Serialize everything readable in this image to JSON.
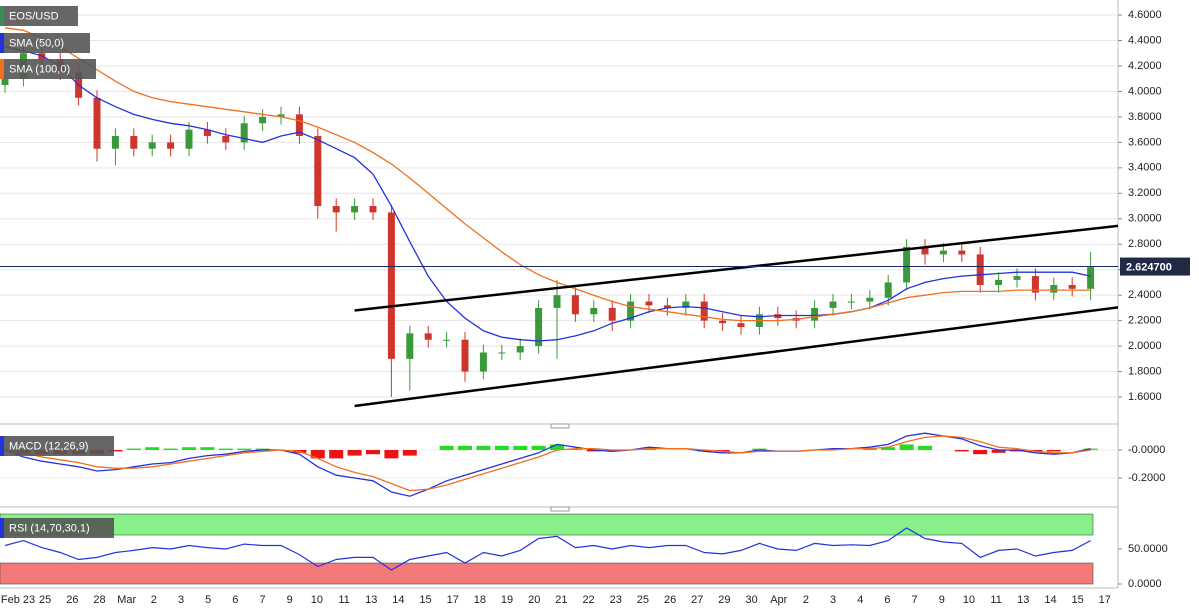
{
  "chart_data": [
    {
      "type": "candlestick",
      "title": "EOS/USD",
      "x_labels": [
        "Feb 23",
        "25",
        "26",
        "28",
        "Mar",
        "2",
        "3",
        "5",
        "6",
        "7",
        "9",
        "10",
        "11",
        "13",
        "14",
        "15",
        "17",
        "18",
        "19",
        "20",
        "21",
        "22",
        "23",
        "25",
        "26",
        "27",
        "29",
        "30",
        "Apr",
        "2",
        "3",
        "4",
        "6",
        "7",
        "9",
        "10",
        "11",
        "13",
        "14",
        "15",
        "17"
      ],
      "candles": {
        "open": [
          4.05,
          4.1,
          4.3,
          4.25,
          4.15,
          3.95,
          3.55,
          3.65,
          3.55,
          3.6,
          3.55,
          3.7,
          3.65,
          3.6,
          3.75,
          3.8,
          3.82,
          3.65,
          3.1,
          3.05,
          3.1,
          3.05,
          1.9,
          2.1,
          2.05,
          2.05,
          1.8,
          1.95,
          1.95,
          2.0,
          2.3,
          2.4,
          2.25,
          2.3,
          2.2,
          2.35,
          2.32,
          2.3,
          2.35,
          2.2,
          2.18,
          2.15,
          2.25,
          2.22,
          2.2,
          2.3,
          2.35,
          2.35,
          2.38,
          2.5,
          2.78,
          2.72,
          2.75,
          2.72,
          2.48,
          2.52,
          2.55,
          2.42,
          2.48,
          2.45
        ],
        "high": [
          4.16,
          4.36,
          4.36,
          4.31,
          4.21,
          4.01,
          3.71,
          3.71,
          3.66,
          3.66,
          3.76,
          3.76,
          3.71,
          3.81,
          3.86,
          3.88,
          3.88,
          3.71,
          3.16,
          3.16,
          3.16,
          3.11,
          2.16,
          2.16,
          2.11,
          2.11,
          2.01,
          2.01,
          2.06,
          2.36,
          2.52,
          2.46,
          2.36,
          2.36,
          2.41,
          2.41,
          2.38,
          2.41,
          2.41,
          2.26,
          2.24,
          2.31,
          2.31,
          2.28,
          2.36,
          2.41,
          2.41,
          2.44,
          2.56,
          2.84,
          2.84,
          2.81,
          2.81,
          2.78,
          2.58,
          2.61,
          2.61,
          2.54,
          2.54,
          2.74
        ],
        "low": [
          3.99,
          4.04,
          4.19,
          4.09,
          3.89,
          3.45,
          3.42,
          3.49,
          3.49,
          3.49,
          3.49,
          3.59,
          3.54,
          3.54,
          3.69,
          3.74,
          3.59,
          3.0,
          2.9,
          2.99,
          2.99,
          1.6,
          1.65,
          1.99,
          1.99,
          1.72,
          1.74,
          1.89,
          1.89,
          1.94,
          1.9,
          2.19,
          2.19,
          2.12,
          2.14,
          2.26,
          2.24,
          2.24,
          2.14,
          2.12,
          2.09,
          2.09,
          2.16,
          2.14,
          2.14,
          2.24,
          2.29,
          2.29,
          2.32,
          2.44,
          2.64,
          2.66,
          2.66,
          2.42,
          2.42,
          2.46,
          2.36,
          2.36,
          2.39,
          2.36
        ],
        "close": [
          4.1,
          4.3,
          4.25,
          4.15,
          3.95,
          3.55,
          3.65,
          3.55,
          3.6,
          3.55,
          3.7,
          3.65,
          3.6,
          3.75,
          3.8,
          3.82,
          3.65,
          3.1,
          3.05,
          3.1,
          3.05,
          1.9,
          2.1,
          2.05,
          2.05,
          1.8,
          1.95,
          1.95,
          2.0,
          2.3,
          2.4,
          2.25,
          2.3,
          2.2,
          2.35,
          2.32,
          2.3,
          2.35,
          2.2,
          2.18,
          2.15,
          2.25,
          2.22,
          2.2,
          2.3,
          2.35,
          2.35,
          2.38,
          2.5,
          2.78,
          2.72,
          2.75,
          2.72,
          2.48,
          2.52,
          2.55,
          2.42,
          2.48,
          2.45,
          2.62
        ]
      },
      "up_color": "#3a9a3a",
      "down_color": "#d0352b",
      "title_color": "#3a8a5a",
      "series": [
        {
          "name": "SMA (50,0)",
          "color": "#2233dd",
          "values": [
            4.35,
            4.32,
            4.28,
            4.2,
            4.05,
            3.95,
            3.88,
            3.82,
            3.78,
            3.75,
            3.73,
            3.7,
            3.66,
            3.63,
            3.6,
            3.65,
            3.68,
            3.62,
            3.55,
            3.48,
            3.35,
            3.1,
            2.82,
            2.55,
            2.35,
            2.22,
            2.12,
            2.07,
            2.05,
            2.04,
            2.05,
            2.08,
            2.12,
            2.18,
            2.22,
            2.27,
            2.3,
            2.31,
            2.3,
            2.27,
            2.24,
            2.23,
            2.24,
            2.24,
            2.24,
            2.25,
            2.27,
            2.3,
            2.36,
            2.45,
            2.5,
            2.53,
            2.55,
            2.56,
            2.57,
            2.58,
            2.58,
            2.58,
            2.58,
            2.55
          ]
        },
        {
          "name": "SMA (100,0)",
          "color": "#f07020",
          "values": [
            4.5,
            4.48,
            4.42,
            4.35,
            4.26,
            4.17,
            4.08,
            4.0,
            3.95,
            3.92,
            3.9,
            3.88,
            3.86,
            3.84,
            3.82,
            3.8,
            3.77,
            3.72,
            3.66,
            3.6,
            3.52,
            3.43,
            3.32,
            3.2,
            3.08,
            2.96,
            2.85,
            2.74,
            2.64,
            2.56,
            2.5,
            2.45,
            2.4,
            2.35,
            2.31,
            2.29,
            2.27,
            2.25,
            2.23,
            2.21,
            2.2,
            2.2,
            2.2,
            2.21,
            2.23,
            2.25,
            2.27,
            2.3,
            2.34,
            2.38,
            2.4,
            2.42,
            2.43,
            2.43,
            2.43,
            2.44,
            2.44,
            2.44,
            2.44,
            2.44
          ]
        }
      ],
      "trendlines": [
        {
          "x": [
            19,
            64
          ],
          "y": [
            2.28,
            3.0
          ]
        },
        {
          "x": [
            19,
            64
          ],
          "y": [
            1.53,
            2.37
          ]
        }
      ],
      "last_price": {
        "value": 2.6247,
        "label": "2.624700"
      },
      "ylim": [
        1.404,
        4.718
      ],
      "yticks": [
        {
          "value": 1.6,
          "label": "1.6000"
        },
        {
          "value": 1.8,
          "label": "1.8000"
        },
        {
          "value": 2.0,
          "label": "2.0000"
        },
        {
          "value": 2.2,
          "label": "2.2000"
        },
        {
          "value": 2.4,
          "label": "2.4000"
        },
        {
          "value": 2.6,
          "label": "2.6000"
        },
        {
          "value": 2.8,
          "label": "2.8000"
        },
        {
          "value": 3.0,
          "label": "3.0000"
        },
        {
          "value": 3.2,
          "label": "3.2000"
        },
        {
          "value": 3.4,
          "label": "3.4000"
        },
        {
          "value": 3.6,
          "label": "3.6000"
        },
        {
          "value": 3.8,
          "label": "3.8000"
        },
        {
          "value": 4.0,
          "label": "4.0000"
        },
        {
          "value": 4.2,
          "label": "4.2000"
        },
        {
          "value": 4.4,
          "label": "4.4000"
        },
        {
          "value": 4.6,
          "label": "4.6000"
        }
      ],
      "grid": true
    },
    {
      "type": "macd",
      "title": "MACD (12,26,9)",
      "title_color": "#2233dd",
      "series": [
        {
          "color": "#2233dd",
          "values": [
            0,
            -0.05,
            -0.08,
            -0.1,
            -0.12,
            -0.15,
            -0.14,
            -0.12,
            -0.1,
            -0.09,
            -0.06,
            -0.04,
            -0.03,
            -0.01,
            0.0,
            0.0,
            -0.03,
            -0.12,
            -0.18,
            -0.2,
            -0.22,
            -0.3,
            -0.33,
            -0.28,
            -0.22,
            -0.18,
            -0.14,
            -0.1,
            -0.06,
            -0.02,
            0.04,
            0.02,
            0.0,
            -0.01,
            0.0,
            0.02,
            0.01,
            0.01,
            -0.01,
            -0.02,
            -0.02,
            0.0,
            -0.01,
            -0.01,
            0.0,
            0.01,
            0.01,
            0.02,
            0.04,
            0.1,
            0.12,
            0.1,
            0.08,
            0.03,
            0.0,
            0.0,
            -0.02,
            -0.03,
            -0.02,
            0.01
          ]
        },
        {
          "color": "#f07020",
          "values": [
            0,
            -0.02,
            -0.05,
            -0.07,
            -0.09,
            -0.12,
            -0.13,
            -0.13,
            -0.12,
            -0.1,
            -0.08,
            -0.06,
            -0.04,
            -0.02,
            -0.01,
            0,
            -0.01,
            -0.06,
            -0.12,
            -0.16,
            -0.19,
            -0.24,
            -0.29,
            -0.28,
            -0.25,
            -0.21,
            -0.17,
            -0.13,
            -0.09,
            -0.05,
            0.0,
            0.01,
            0.01,
            0.0,
            0.0,
            0.01,
            0.01,
            0.01,
            0.0,
            -0.01,
            -0.02,
            -0.01,
            -0.01,
            -0.01,
            0,
            0,
            0.01,
            0.01,
            0.02,
            0.06,
            0.09,
            0.1,
            0.09,
            0.06,
            0.02,
            0.01,
            -0.01,
            -0.02,
            -0.02,
            0.0
          ]
        }
      ],
      "histogram": {
        "pos_color": "#22dd22",
        "neg_color": "#ee1111",
        "values": [
          0,
          -0.03,
          -0.03,
          -0.03,
          -0.03,
          -0.03,
          -0.01,
          0.01,
          0.02,
          0.01,
          0.02,
          0.02,
          0.01,
          0.01,
          0.01,
          0,
          -0.02,
          -0.06,
          -0.06,
          -0.04,
          -0.03,
          -0.06,
          -0.04,
          0,
          0.03,
          0.03,
          0.03,
          0.03,
          0.03,
          0.03,
          0.04,
          0.01,
          -0.01,
          -0.01,
          0,
          0.01,
          0,
          0,
          -0.01,
          -0.01,
          0,
          0.01,
          0,
          0,
          0,
          0.01,
          0,
          0.01,
          0.02,
          0.04,
          0.03,
          0,
          -0.01,
          -0.03,
          -0.02,
          -0.01,
          -0.01,
          -0.01,
          0,
          0.01
        ]
      },
      "ylim": [
        -0.393,
        0.143
      ],
      "yticks": [
        {
          "value": 0,
          "label": "-0.0000"
        },
        {
          "value": -0.2,
          "label": "-0.2000"
        }
      ]
    },
    {
      "type": "rsi",
      "title": "RSI (14,70,30,1)",
      "title_color": "#2233dd",
      "series": [
        {
          "color": "#2233dd",
          "values": [
            55,
            62,
            52,
            45,
            35,
            38,
            45,
            48,
            52,
            50,
            55,
            52,
            50,
            57,
            55,
            55,
            42,
            25,
            35,
            38,
            38,
            20,
            35,
            40,
            45,
            30,
            45,
            40,
            48,
            65,
            68,
            52,
            55,
            50,
            55,
            52,
            55,
            55,
            45,
            43,
            48,
            58,
            50,
            48,
            58,
            55,
            56,
            55,
            62,
            80,
            65,
            60,
            58,
            38,
            48,
            50,
            40,
            45,
            48,
            62
          ]
        }
      ],
      "bands": [
        {
          "from": 70,
          "to": 100,
          "color": "#88f088"
        },
        {
          "from": 0,
          "to": 30,
          "color": "#f47a7a"
        }
      ],
      "ylim": [
        -5.7,
        102.9
      ],
      "yticks": [
        {
          "value": 50,
          "label": "50.0000"
        },
        {
          "value": 0,
          "label": "0.0000"
        }
      ]
    }
  ]
}
